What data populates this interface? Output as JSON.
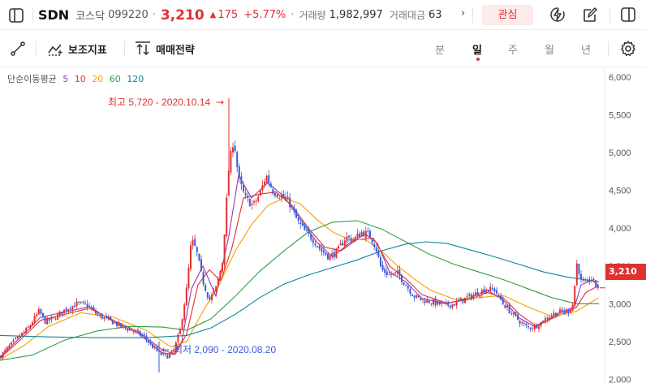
{
  "header": {
    "symbol": "SDN",
    "market": "코스닥",
    "code": "099220",
    "separator": "·",
    "price": "3,210",
    "change_arrow": "▲",
    "change": "175",
    "change_pct": "+5.77%",
    "volume_label": "거래량",
    "volume": "1,982,997",
    "amount_label": "거래대금",
    "amount": "63",
    "more_glyph": "›",
    "favorite_label": "관심"
  },
  "toolbar": {
    "indicator_label": "보조지표",
    "strategy_label": "매매전략",
    "periods": [
      "분",
      "일",
      "주",
      "월",
      "년"
    ],
    "active_period": "일"
  },
  "colors": {
    "up": "#e03131",
    "down": "#3b5bdb",
    "ma5": "#9c36b5",
    "ma10": "#e03131",
    "ma20": "#f59f00",
    "ma60": "#2f9e44",
    "ma120": "#0c8599"
  },
  "chart_data": {
    "type": "candlestick",
    "legend": {
      "title": "단순이동평균",
      "periods": [
        "5",
        "10",
        "20",
        "60",
        "120"
      ]
    },
    "y_ticks": [
      "6,000",
      "5,500",
      "5,000",
      "4,500",
      "4,000",
      "3,500",
      "3,000",
      "2,500",
      "2,000"
    ],
    "ylim": [
      1950,
      6130
    ],
    "current_price_label": "3,210",
    "current_price": 3210,
    "high_annotation": {
      "text": "최고 5,720 - 2020.10.14",
      "value": 5720,
      "date": "2020.10.14",
      "arrow": "→"
    },
    "low_annotation": {
      "text": "최저 2,090 - 2020.08.20",
      "value": 2090,
      "date": "2020.08.20",
      "arrow": "←"
    },
    "close_path": [
      [
        0,
        2300
      ],
      [
        10,
        2420
      ],
      [
        22,
        2550
      ],
      [
        35,
        2680
      ],
      [
        48,
        2900
      ],
      [
        56,
        2760
      ],
      [
        66,
        2800
      ],
      [
        80,
        2920
      ],
      [
        95,
        3000
      ],
      [
        108,
        2980
      ],
      [
        120,
        2850
      ],
      [
        135,
        2780
      ],
      [
        150,
        2690
      ],
      [
        165,
        2640
      ],
      [
        178,
        2560
      ],
      [
        188,
        2430
      ],
      [
        198,
        2330
      ],
      [
        206,
        2300
      ],
      [
        214,
        2380
      ],
      [
        222,
        2650
      ],
      [
        230,
        3200
      ],
      [
        236,
        3850
      ],
      [
        242,
        3700
      ],
      [
        250,
        3300
      ],
      [
        258,
        3050
      ],
      [
        266,
        3200
      ],
      [
        274,
        3550
      ],
      [
        282,
        4800
      ],
      [
        288,
        5200
      ],
      [
        294,
        4650
      ],
      [
        302,
        4400
      ],
      [
        312,
        4300
      ],
      [
        320,
        4450
      ],
      [
        328,
        4700
      ],
      [
        336,
        4500
      ],
      [
        346,
        4430
      ],
      [
        356,
        4350
      ],
      [
        366,
        4100
      ],
      [
        376,
        3950
      ],
      [
        386,
        3850
      ],
      [
        396,
        3700
      ],
      [
        406,
        3620
      ],
      [
        416,
        3700
      ],
      [
        426,
        3880
      ],
      [
        436,
        3850
      ],
      [
        446,
        3950
      ],
      [
        456,
        3900
      ],
      [
        463,
        3750
      ],
      [
        470,
        3450
      ],
      [
        480,
        3380
      ],
      [
        490,
        3400
      ],
      [
        500,
        3250
      ],
      [
        510,
        3100
      ],
      [
        520,
        3050
      ],
      [
        530,
        3030
      ],
      [
        540,
        3000
      ],
      [
        550,
        2980
      ],
      [
        560,
        3000
      ],
      [
        570,
        3050
      ],
      [
        580,
        3100
      ],
      [
        590,
        3150
      ],
      [
        600,
        3200
      ],
      [
        610,
        3180
      ],
      [
        620,
        3000
      ],
      [
        630,
        2880
      ],
      [
        640,
        2770
      ],
      [
        650,
        2680
      ],
      [
        660,
        2700
      ],
      [
        670,
        2780
      ],
      [
        680,
        2860
      ],
      [
        690,
        2890
      ],
      [
        700,
        2900
      ],
      [
        706,
        3000
      ],
      [
        711,
        3550
      ],
      [
        716,
        3300
      ],
      [
        722,
        3250
      ],
      [
        728,
        3350
      ],
      [
        733,
        3250
      ],
      [
        738,
        3210
      ]
    ],
    "moving_averages": [
      {
        "period": 5,
        "color": "#9c36b5",
        "path": [
          [
            0,
            2290
          ],
          [
            20,
            2500
          ],
          [
            50,
            2820
          ],
          [
            80,
            2890
          ],
          [
            110,
            2960
          ],
          [
            140,
            2760
          ],
          [
            170,
            2610
          ],
          [
            200,
            2350
          ],
          [
            214,
            2330
          ],
          [
            224,
            2500
          ],
          [
            236,
            3200
          ],
          [
            250,
            3500
          ],
          [
            266,
            3100
          ],
          [
            282,
            3900
          ],
          [
            294,
            4700
          ],
          [
            310,
            4400
          ],
          [
            330,
            4600
          ],
          [
            350,
            4420
          ],
          [
            370,
            4120
          ],
          [
            390,
            3820
          ],
          [
            410,
            3620
          ],
          [
            430,
            3800
          ],
          [
            450,
            3920
          ],
          [
            465,
            3800
          ],
          [
            480,
            3420
          ],
          [
            500,
            3290
          ],
          [
            520,
            3070
          ],
          [
            550,
            3000
          ],
          [
            580,
            3080
          ],
          [
            600,
            3180
          ],
          [
            620,
            3050
          ],
          [
            640,
            2810
          ],
          [
            660,
            2690
          ],
          [
            690,
            2880
          ],
          [
            708,
            2960
          ],
          [
            716,
            3250
          ],
          [
            730,
            3310
          ],
          [
            738,
            3230
          ]
        ]
      },
      {
        "period": 10,
        "color": "#e03131",
        "path": [
          [
            0,
            2280
          ],
          [
            20,
            2470
          ],
          [
            50,
            2780
          ],
          [
            80,
            2860
          ],
          [
            110,
            2940
          ],
          [
            140,
            2780
          ],
          [
            170,
            2630
          ],
          [
            200,
            2390
          ],
          [
            216,
            2330
          ],
          [
            230,
            2600
          ],
          [
            244,
            3250
          ],
          [
            258,
            3450
          ],
          [
            272,
            3300
          ],
          [
            286,
            3750
          ],
          [
            300,
            4400
          ],
          [
            320,
            4450
          ],
          [
            340,
            4480
          ],
          [
            360,
            4300
          ],
          [
            380,
            4000
          ],
          [
            400,
            3750
          ],
          [
            420,
            3700
          ],
          [
            440,
            3850
          ],
          [
            460,
            3870
          ],
          [
            480,
            3500
          ],
          [
            500,
            3330
          ],
          [
            520,
            3120
          ],
          [
            550,
            3010
          ],
          [
            580,
            3060
          ],
          [
            600,
            3150
          ],
          [
            620,
            3080
          ],
          [
            640,
            2860
          ],
          [
            660,
            2710
          ],
          [
            690,
            2850
          ],
          [
            710,
            2950
          ],
          [
            722,
            3150
          ],
          [
            738,
            3240
          ]
        ]
      },
      {
        "period": 20,
        "color": "#f59f00",
        "path": [
          [
            0,
            2260
          ],
          [
            30,
            2450
          ],
          [
            60,
            2700
          ],
          [
            100,
            2880
          ],
          [
            140,
            2820
          ],
          [
            180,
            2650
          ],
          [
            210,
            2430
          ],
          [
            230,
            2500
          ],
          [
            250,
            2900
          ],
          [
            270,
            3250
          ],
          [
            290,
            3700
          ],
          [
            310,
            4050
          ],
          [
            330,
            4300
          ],
          [
            350,
            4400
          ],
          [
            370,
            4320
          ],
          [
            390,
            4120
          ],
          [
            410,
            3950
          ],
          [
            430,
            3850
          ],
          [
            450,
            3850
          ],
          [
            470,
            3700
          ],
          [
            490,
            3500
          ],
          [
            510,
            3330
          ],
          [
            530,
            3180
          ],
          [
            560,
            3060
          ],
          [
            590,
            3080
          ],
          [
            620,
            3110
          ],
          [
            650,
            2960
          ],
          [
            680,
            2830
          ],
          [
            710,
            2900
          ],
          [
            738,
            3080
          ]
        ]
      },
      {
        "period": 60,
        "color": "#2f9e44",
        "path": [
          [
            0,
            2250
          ],
          [
            40,
            2320
          ],
          [
            80,
            2520
          ],
          [
            120,
            2640
          ],
          [
            160,
            2700
          ],
          [
            200,
            2690
          ],
          [
            230,
            2650
          ],
          [
            260,
            2800
          ],
          [
            290,
            3100
          ],
          [
            320,
            3430
          ],
          [
            350,
            3700
          ],
          [
            380,
            3950
          ],
          [
            410,
            4080
          ],
          [
            440,
            4100
          ],
          [
            470,
            3990
          ],
          [
            500,
            3820
          ],
          [
            530,
            3650
          ],
          [
            560,
            3520
          ],
          [
            590,
            3420
          ],
          [
            620,
            3320
          ],
          [
            650,
            3200
          ],
          [
            680,
            3080
          ],
          [
            710,
            3000
          ],
          [
            738,
            3000
          ]
        ]
      },
      {
        "period": 120,
        "color": "#0c8599",
        "path": [
          [
            0,
            2580
          ],
          [
            60,
            2560
          ],
          [
            120,
            2550
          ],
          [
            180,
            2550
          ],
          [
            230,
            2580
          ],
          [
            260,
            2680
          ],
          [
            290,
            2860
          ],
          [
            320,
            3080
          ],
          [
            350,
            3260
          ],
          [
            380,
            3380
          ],
          [
            410,
            3480
          ],
          [
            440,
            3580
          ],
          [
            470,
            3700
          ],
          [
            500,
            3790
          ],
          [
            525,
            3820
          ],
          [
            550,
            3800
          ],
          [
            580,
            3710
          ],
          [
            610,
            3620
          ],
          [
            640,
            3520
          ],
          [
            670,
            3420
          ],
          [
            700,
            3350
          ],
          [
            738,
            3290
          ]
        ]
      }
    ]
  }
}
